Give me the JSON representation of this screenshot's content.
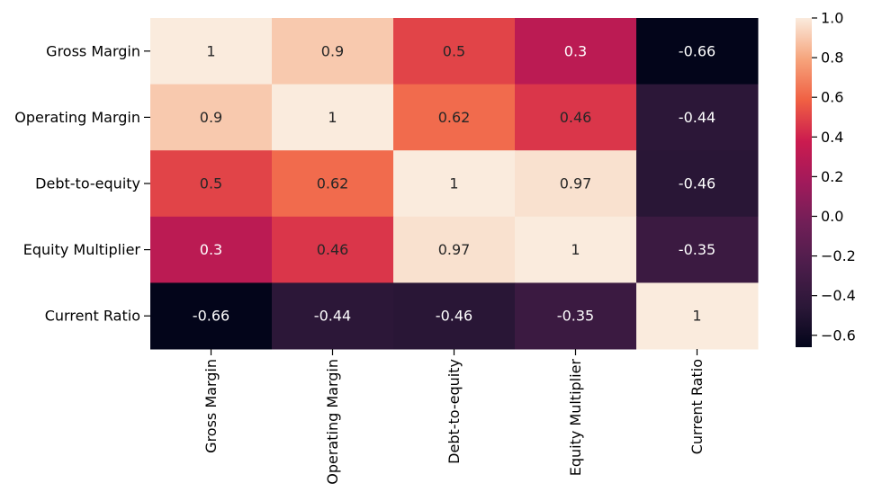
{
  "chart_data": {
    "type": "heatmap",
    "title": "",
    "xlabel": "",
    "ylabel": "",
    "row_labels": [
      "Gross Margin",
      "Operating Margin",
      "Debt-to-equity",
      "Equity Multiplier",
      "Current Ratio"
    ],
    "col_labels": [
      "Gross Margin",
      "Operating Margin",
      "Debt-to-equity",
      "Equity Multiplier",
      "Current Ratio"
    ],
    "values": [
      [
        1,
        0.9,
        0.5,
        0.3,
        -0.66
      ],
      [
        0.9,
        1,
        0.62,
        0.46,
        -0.44
      ],
      [
        0.5,
        0.62,
        1,
        0.97,
        -0.46
      ],
      [
        0.3,
        0.46,
        0.97,
        1,
        -0.35
      ],
      [
        -0.66,
        -0.44,
        -0.46,
        -0.35,
        1
      ]
    ],
    "annotations": [
      [
        "1",
        "0.9",
        "0.5",
        "0.3",
        "-0.66"
      ],
      [
        "0.9",
        "1",
        "0.62",
        "0.46",
        "-0.44"
      ],
      [
        "0.5",
        "0.62",
        "1",
        "0.97",
        "-0.46"
      ],
      [
        "0.3",
        "0.46",
        "0.97",
        "1",
        "-0.35"
      ],
      [
        "-0.66",
        "-0.44",
        "-0.46",
        "-0.35",
        "1"
      ]
    ],
    "colormap": "rocket",
    "vmin": -0.66,
    "vmax": 1.0,
    "colorbar": {
      "ticks": [
        1.0,
        0.8,
        0.6,
        0.4,
        0.2,
        0.0,
        -0.2,
        -0.4,
        -0.6
      ],
      "tick_labels": [
        "1.0",
        "0.8",
        "0.6",
        "0.4",
        "0.2",
        "0.0",
        "−0.2",
        "−0.4",
        "−0.6"
      ]
    }
  }
}
